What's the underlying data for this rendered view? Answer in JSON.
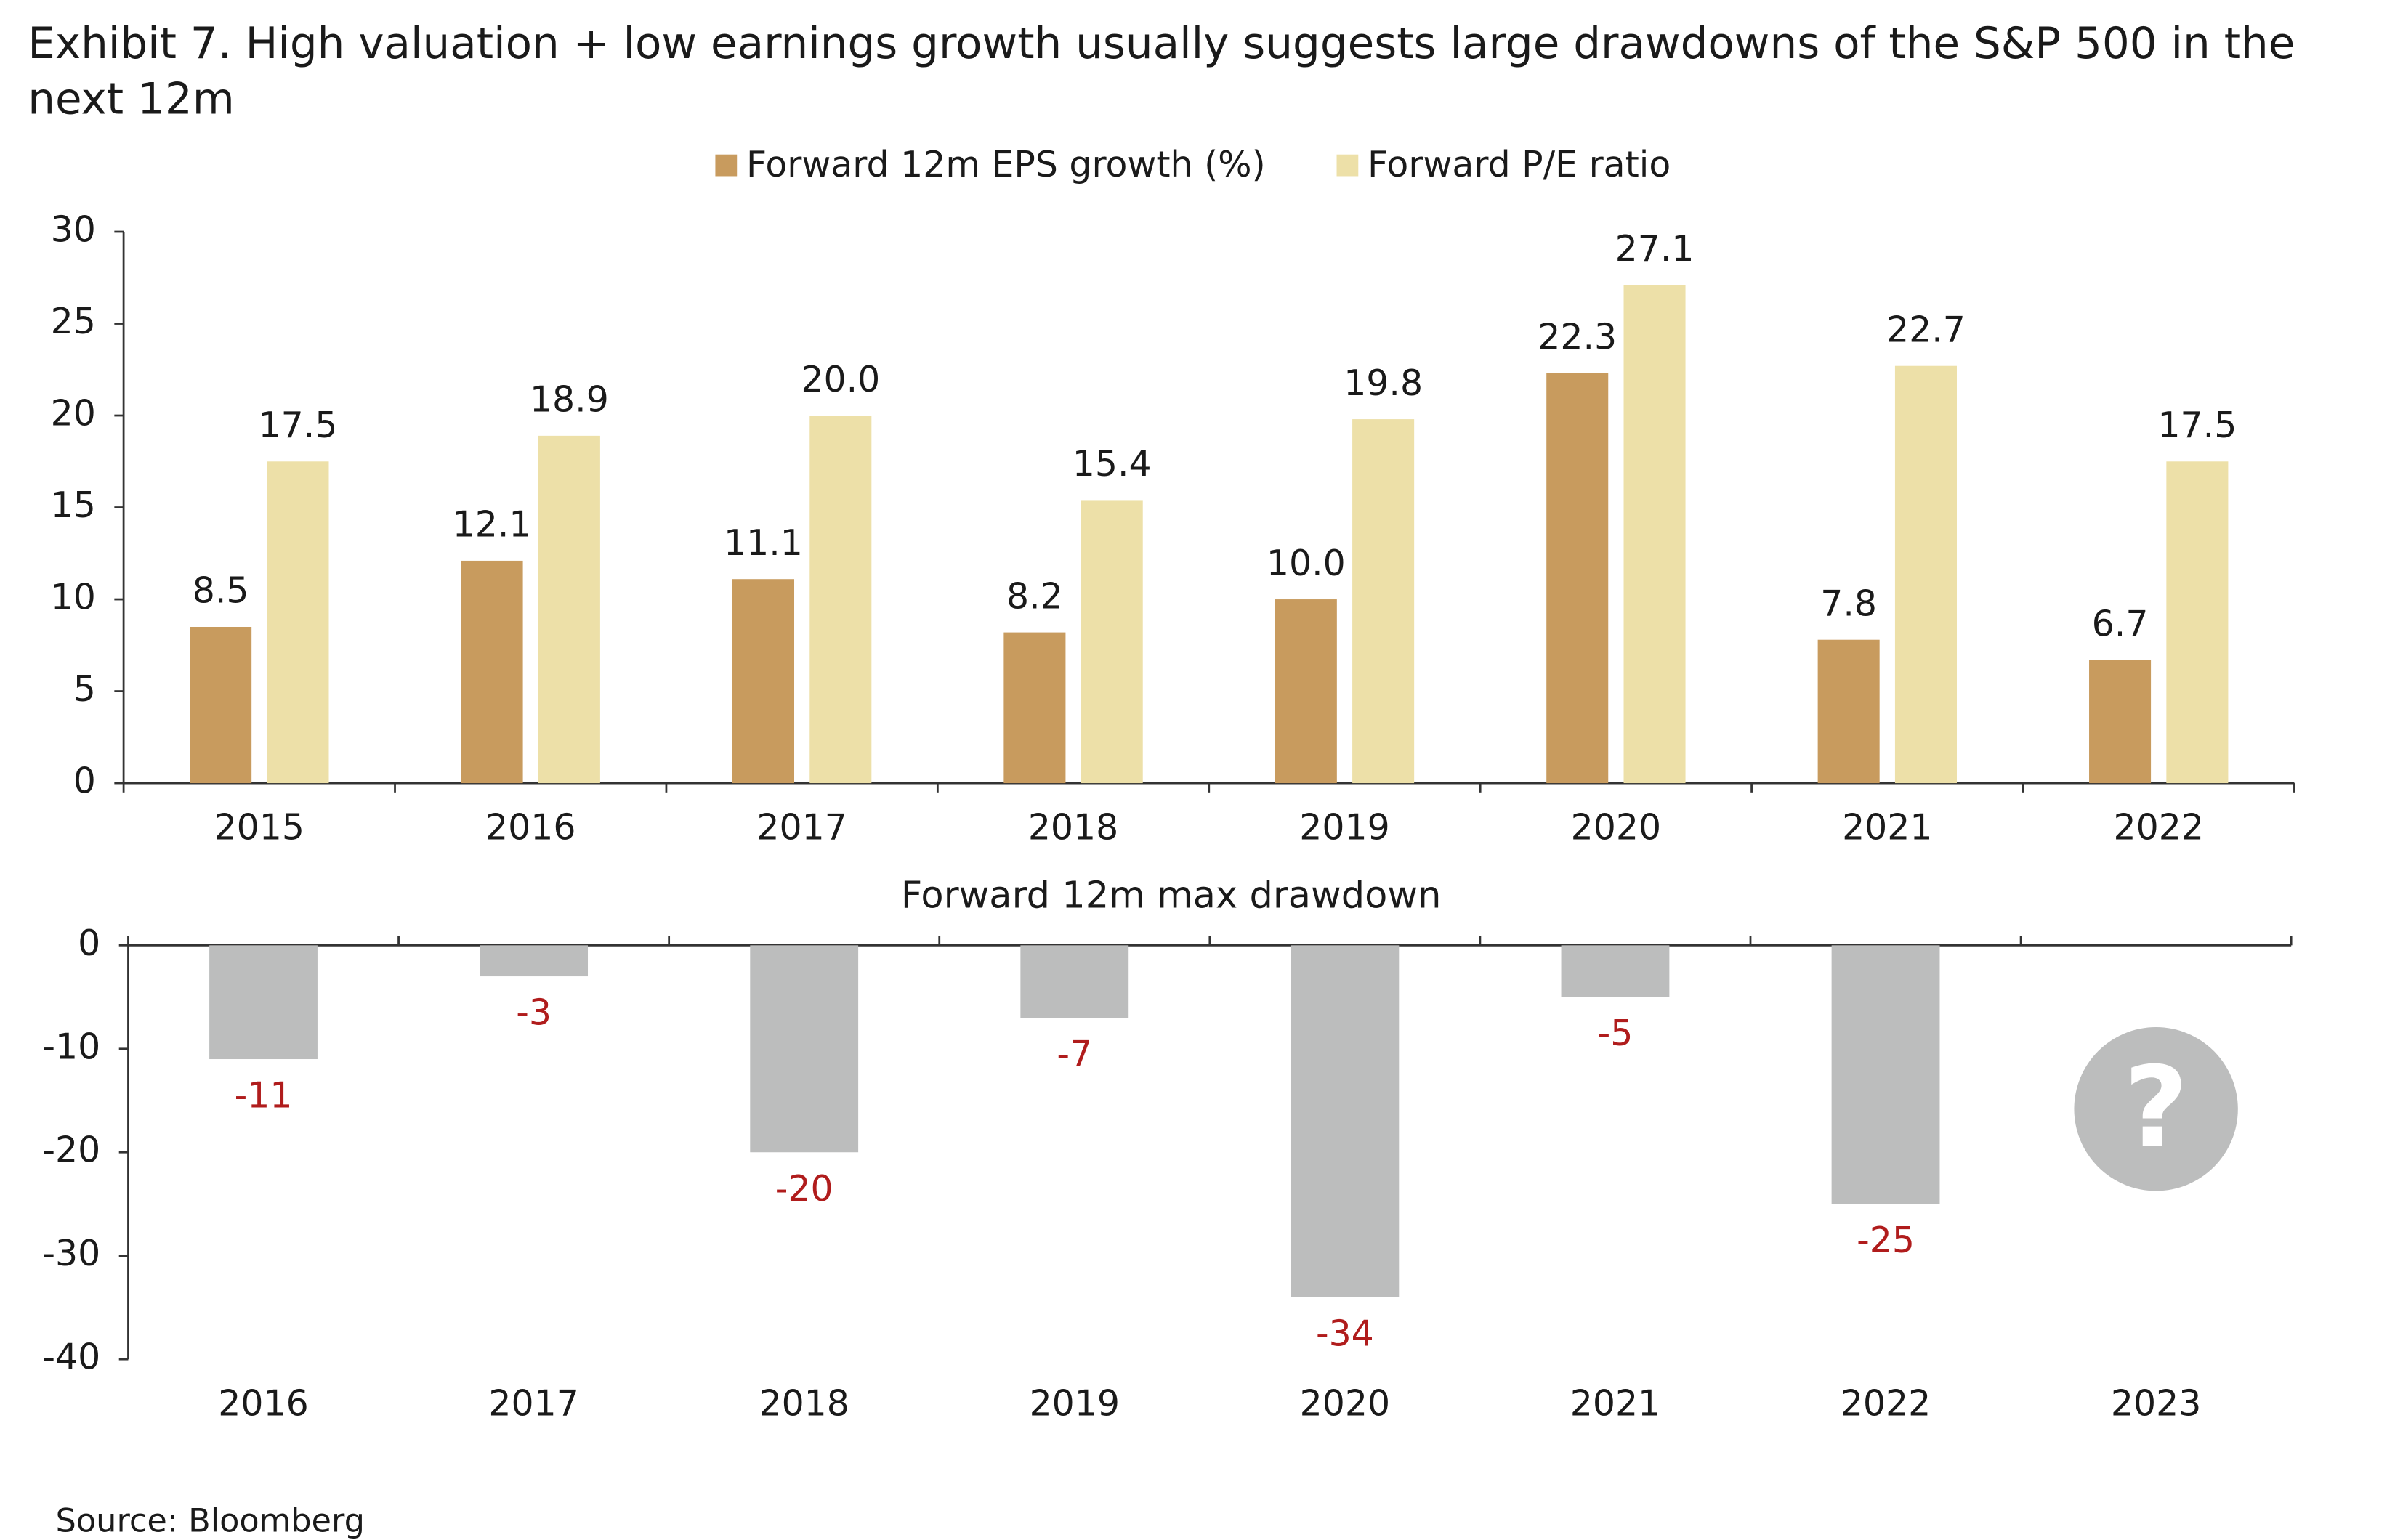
{
  "title": "Exhibit 7. High valuation + low earnings growth usually suggests large drawdowns of the S&P 500 in the next 12m",
  "source": "Source: Bloomberg",
  "chart_data": [
    {
      "type": "bar",
      "categories": [
        "2015",
        "2016",
        "2017",
        "2018",
        "2019",
        "2020",
        "2021",
        "2022"
      ],
      "series": [
        {
          "name": "Forward 12m EPS growth (%)",
          "color": "#c89b5e",
          "values": [
            8.5,
            12.1,
            11.1,
            8.2,
            10.0,
            22.3,
            7.8,
            6.7
          ],
          "value_labels": [
            "8.5",
            "12.1",
            "11.1",
            "8.2",
            "10.0",
            "22.3",
            "7.8",
            "6.7"
          ]
        },
        {
          "name": "Forward P/E ratio",
          "color": "#ede0a8",
          "values": [
            17.5,
            18.9,
            20.0,
            15.4,
            19.8,
            27.1,
            22.7,
            17.5
          ],
          "value_labels": [
            "17.5",
            "18.9",
            "20.0",
            "15.4",
            "19.8",
            "27.1",
            "22.7",
            "17.5"
          ]
        }
      ],
      "ylim": [
        0,
        30
      ],
      "yticks": [
        0,
        5,
        10,
        15,
        20,
        25,
        30
      ],
      "legend": "top"
    },
    {
      "type": "bar",
      "title": "Forward 12m max drawdown",
      "categories": [
        "2016",
        "2017",
        "2018",
        "2019",
        "2020",
        "2021",
        "2022",
        "2023"
      ],
      "values": [
        -11,
        -3,
        -20,
        -7,
        -34,
        -5,
        -25,
        null
      ],
      "color": "#bcbdbd",
      "label_color": "#b01c1c",
      "ylim": [
        -40,
        0
      ],
      "yticks": [
        0,
        -10,
        -20,
        -30,
        -40
      ],
      "annotation": "?"
    }
  ]
}
